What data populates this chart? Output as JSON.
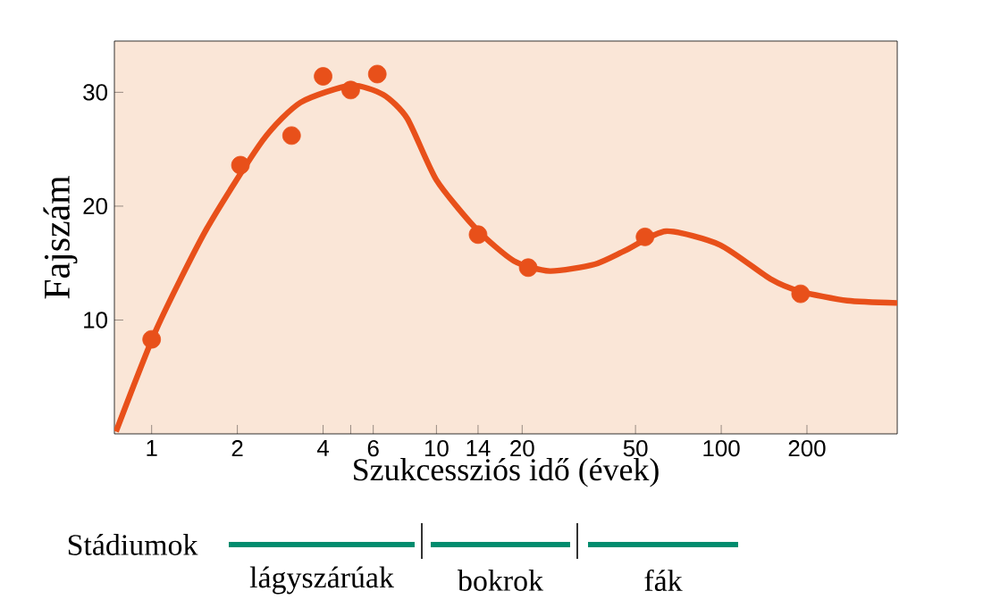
{
  "chart_data": {
    "type": "line",
    "xlabel": "Szukcessziós idő (évek)",
    "ylabel": "Fajszám",
    "log": "x",
    "grid": false,
    "xlim": [
      0.74,
      415
    ],
    "ylim": [
      0,
      34.5
    ],
    "xticks": [
      1,
      2,
      4,
      {
        "value": 5,
        "label": null
      },
      6,
      10,
      14,
      20,
      50,
      100,
      200
    ],
    "yticks": [
      10,
      20,
      30
    ],
    "annotations": [
      "Stádiumok",
      "lágyszárúak",
      "bokrok",
      "fák"
    ],
    "series": [
      {
        "color": "#e8501a",
        "line_style": "solid",
        "x": [
          0.75,
          1.04,
          1.56,
          2.46,
          3.33,
          5,
          6.5,
          7.9,
          10,
          13.8,
          18.7,
          25,
          36,
          46,
          64,
          99,
          149,
          190,
          277,
          415
        ],
        "values": [
          0.2,
          9.2,
          18,
          25.8,
          29.1,
          30.6,
          29.8,
          27.7,
          22.3,
          18,
          15.2,
          14.3,
          14.9,
          16.1,
          17.8,
          16.6,
          13.6,
          12.5,
          11.7,
          11.5
        ]
      },
      {
        "type": "scatter",
        "color": "#e8501a",
        "marker": "circle",
        "x": [
          1,
          2.05,
          3.1,
          4,
          5,
          6.2,
          14,
          21,
          54,
          190
        ],
        "values": [
          8.3,
          23.6,
          26.2,
          31.4,
          30.2,
          31.6,
          17.5,
          14.6,
          17.3,
          12.3
        ]
      }
    ]
  }
}
